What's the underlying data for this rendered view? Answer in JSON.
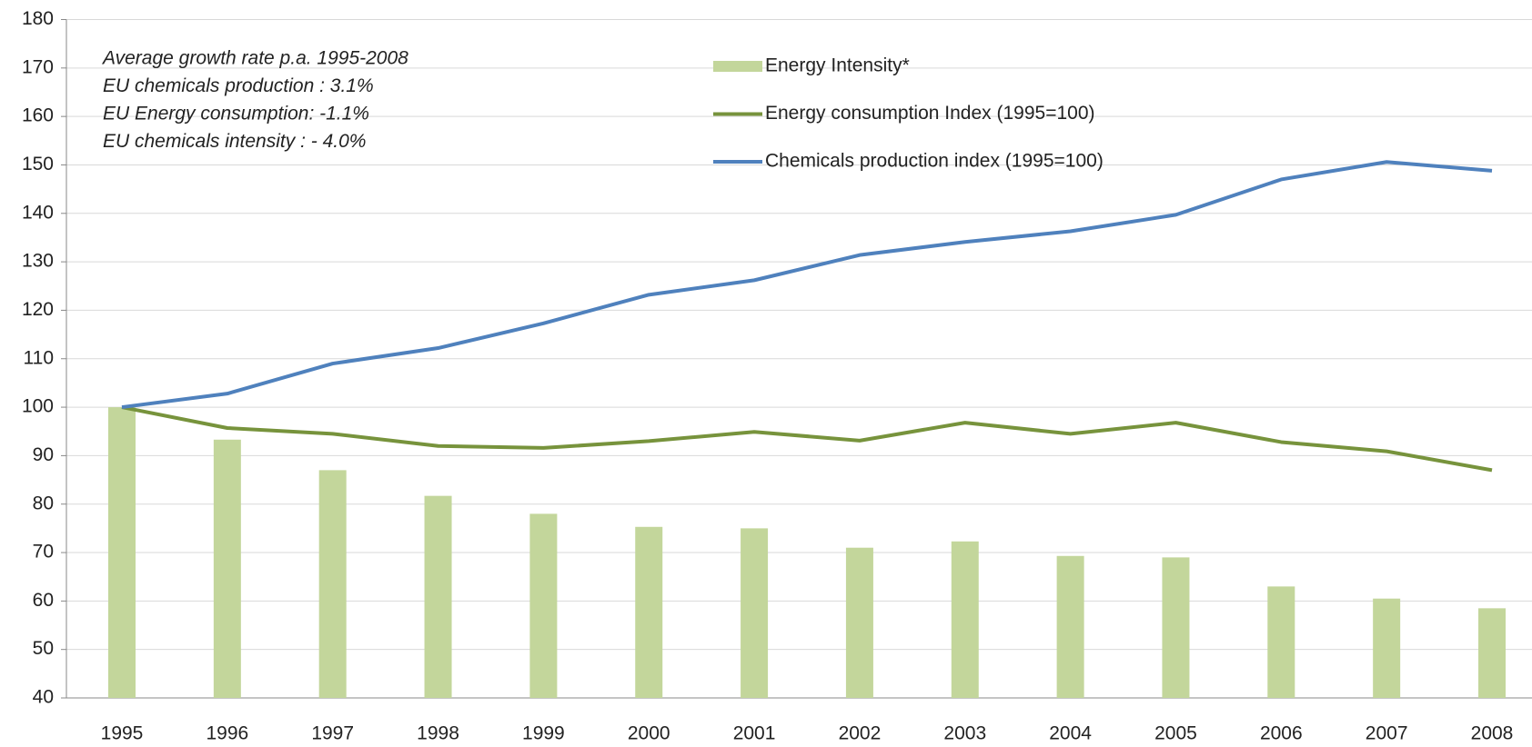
{
  "chart_data": {
    "type": "bar_line",
    "annotations": [
      "Average growth  rate p.a. 1995-2008",
      "EU chemicals production  : 3.1%",
      "EU Energy  consumption: -1.1%",
      "EU chemicals intensity : - 4.0%"
    ],
    "categories": [
      "1995",
      "1996",
      "1997",
      "1998",
      "1999",
      "2000",
      "2001",
      "2002",
      "2003",
      "2004",
      "2005",
      "2006",
      "2007",
      "2008"
    ],
    "series": [
      {
        "name": "Energy Intensity*",
        "kind": "bar",
        "color": "#c3d69b",
        "values": [
          100,
          93.3,
          87,
          81.7,
          78,
          75.3,
          75,
          71,
          72.3,
          69.3,
          69,
          63,
          60.5,
          58.5
        ]
      },
      {
        "name": "Energy consumption Index (1995=100)",
        "kind": "line",
        "color": "#77933c",
        "values": [
          100,
          95.7,
          94.5,
          92,
          91.6,
          93,
          94.9,
          93.1,
          96.8,
          94.5,
          96.8,
          92.8,
          90.9,
          87
        ]
      },
      {
        "name": "Chemicals production index (1995=100)",
        "kind": "line",
        "color": "#4f81bd",
        "values": [
          100,
          102.8,
          109,
          112.2,
          117.3,
          123.2,
          126.2,
          131.4,
          134.1,
          136.3,
          139.7,
          147,
          150.6,
          148.8
        ]
      }
    ],
    "ylim": [
      40,
      180
    ],
    "yticks": [
      40,
      50,
      60,
      70,
      80,
      90,
      100,
      110,
      120,
      130,
      140,
      150,
      160,
      170,
      180
    ],
    "grid": true
  }
}
